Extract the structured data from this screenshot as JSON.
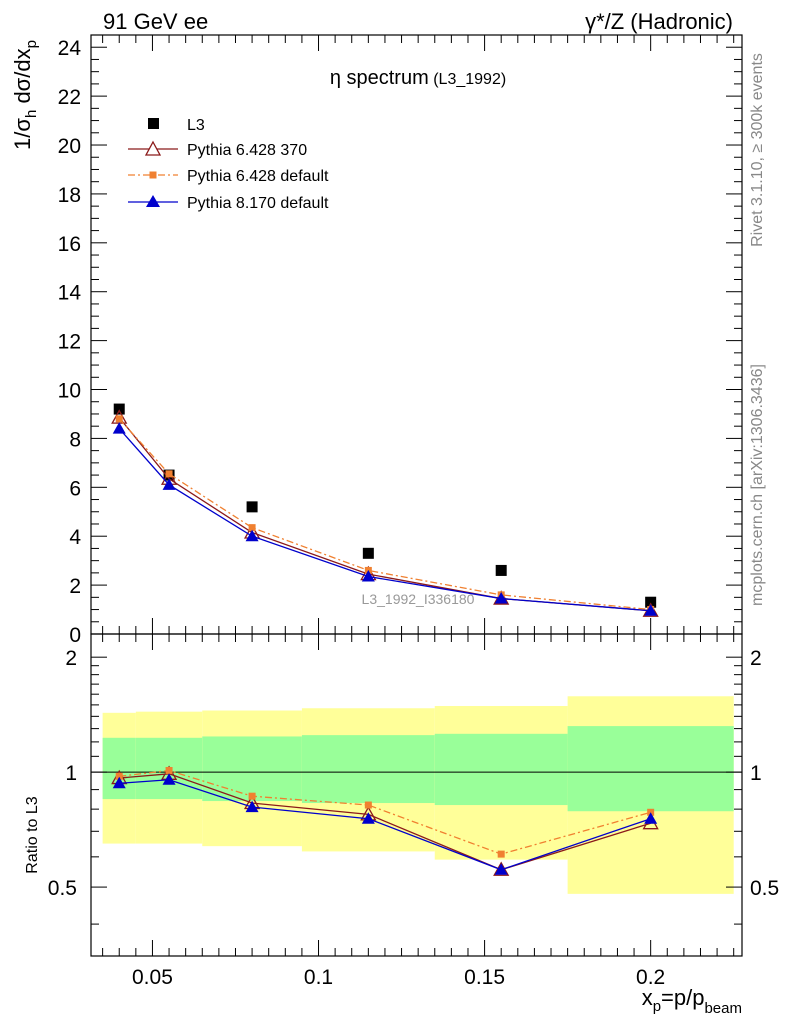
{
  "header": {
    "left": "91 GeV ee",
    "right": "γ*/Z (Hadronic)"
  },
  "side_labels": {
    "rivet": "Rivet 3.1.10, ≥ 300k events",
    "mcplots": "mcplots.cern.ch [arXiv:1306.3436]"
  },
  "chart_data": [
    {
      "panel": "main",
      "type": "line",
      "title": "η spectrum",
      "title_suffix": "(L3_1992)",
      "watermark": "L3_1992_I336180",
      "ylabel": "1/σh dσ/dxp",
      "ylim": [
        0,
        24.5
      ],
      "yticks": [
        0,
        2,
        4,
        6,
        8,
        10,
        12,
        14,
        16,
        18,
        20,
        22,
        24
      ],
      "legend_position": "top-left",
      "x": [
        0.04,
        0.055,
        0.08,
        0.115,
        0.155,
        0.2
      ],
      "series": [
        {
          "name": "L3",
          "style": "data",
          "marker": "square",
          "color": "#000000",
          "values": [
            9.2,
            6.5,
            5.2,
            3.3,
            2.6,
            1.3
          ]
        },
        {
          "name": "Pythia 6.428 370",
          "style": "solid",
          "marker": "triangle-open",
          "color": "#8b1a1a",
          "values": [
            8.85,
            6.35,
            4.15,
            2.45,
            1.45,
            0.95
          ]
        },
        {
          "name": "Pythia 6.428 default",
          "style": "dashdot",
          "marker": "square-small",
          "color": "#f08030",
          "values": [
            8.8,
            6.55,
            4.35,
            2.6,
            1.6,
            1.0
          ]
        },
        {
          "name": "Pythia 8.170 default",
          "style": "solid",
          "marker": "triangle",
          "color": "#0000cc",
          "values": [
            8.4,
            6.1,
            4.0,
            2.35,
            1.45,
            0.95
          ]
        }
      ]
    },
    {
      "panel": "ratio",
      "type": "line",
      "ylabel": "Ratio to L3",
      "ylim": [
        0.33,
        2.3
      ],
      "yticks": [
        0.5,
        1,
        2
      ],
      "yscale": "log",
      "xlabel": "xp=p/pbeam",
      "xlim": [
        0.0315,
        0.2275
      ],
      "xticks": [
        0.05,
        0.1,
        0.15,
        0.2
      ],
      "bands": {
        "bin_edges": [
          0.035,
          0.045,
          0.065,
          0.095,
          0.135,
          0.175,
          0.225
        ],
        "inner_low": [
          0.85,
          0.85,
          0.84,
          0.83,
          0.82,
          0.79
        ],
        "inner_high": [
          1.23,
          1.23,
          1.24,
          1.25,
          1.26,
          1.32
        ],
        "outer_low": [
          0.65,
          0.65,
          0.64,
          0.62,
          0.59,
          0.48
        ],
        "outer_high": [
          1.43,
          1.44,
          1.45,
          1.47,
          1.49,
          1.58
        ],
        "inner_color": "#99ff99",
        "outer_color": "#ffff99"
      },
      "reference": 1,
      "x": [
        0.04,
        0.055,
        0.08,
        0.115,
        0.155,
        0.2
      ],
      "series": [
        {
          "name": "Pythia 6.428 370",
          "style": "solid",
          "marker": "triangle-open",
          "color": "#8b1a1a",
          "values": [
            0.965,
            0.99,
            0.83,
            0.775,
            0.555,
            0.735
          ]
        },
        {
          "name": "Pythia 6.428 default",
          "style": "dashdot",
          "marker": "square-small",
          "color": "#f08030",
          "values": [
            0.975,
            1.01,
            0.865,
            0.82,
            0.61,
            0.785
          ]
        },
        {
          "name": "Pythia 8.170 default",
          "style": "solid",
          "marker": "triangle",
          "color": "#0000cc",
          "values": [
            0.935,
            0.955,
            0.81,
            0.755,
            0.555,
            0.755
          ]
        }
      ]
    }
  ]
}
